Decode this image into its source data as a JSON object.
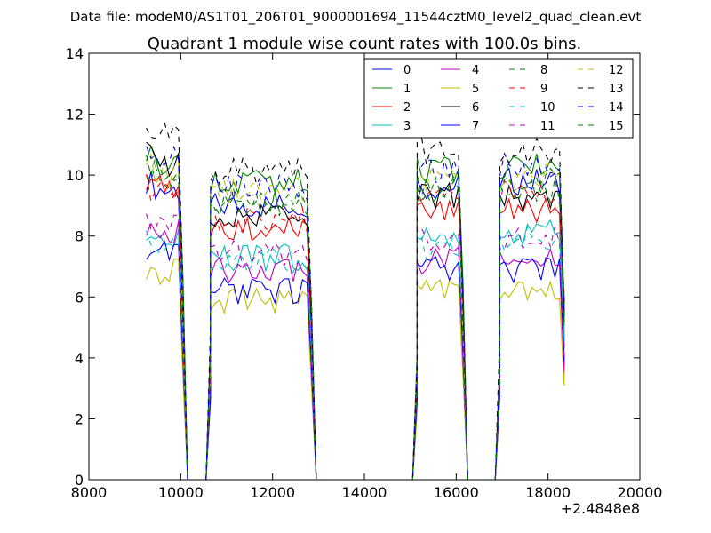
{
  "figure": {
    "suptitle": "Data file: modeM0/AS1T01_206T01_9000001694_11544cztM0_level2_quad_clean.evt"
  },
  "chart_data": {
    "type": "line",
    "title": "Quadrant 1 module wise count rates with 100.0s bins.",
    "xlabel": "",
    "ylabel": "",
    "x_offset_label": "+2.4848e8",
    "xlim": [
      8000,
      20000
    ],
    "ylim": [
      0,
      14
    ],
    "xticks": [
      8000,
      10000,
      12000,
      14000,
      16000,
      18000,
      20000
    ],
    "yticks": [
      0,
      2,
      4,
      6,
      8,
      10,
      12,
      14
    ],
    "grid": false,
    "legend_position": "top-right",
    "legend_columns": 4,
    "bin_seconds": 100,
    "segments": [
      {
        "start": 9250,
        "end": 10050
      },
      {
        "start": 10650,
        "end": 12850
      },
      {
        "start": 15150,
        "end": 16150
      },
      {
        "start": 16950,
        "end": 18350
      }
    ],
    "series": [
      {
        "name": "0",
        "color": "#0000ff",
        "style": "solid",
        "levels": [
          9.5,
          9.0,
          9.6,
          9.8
        ]
      },
      {
        "name": "1",
        "color": "#008000",
        "style": "solid",
        "levels": [
          10.4,
          9.8,
          10.2,
          10.3
        ]
      },
      {
        "name": "2",
        "color": "#ff0000",
        "style": "solid",
        "levels": [
          9.6,
          8.2,
          8.9,
          8.8
        ]
      },
      {
        "name": "3",
        "color": "#00bfbf",
        "style": "solid",
        "levels": [
          7.9,
          7.3,
          7.9,
          8.1
        ]
      },
      {
        "name": "4",
        "color": "#bf00bf",
        "style": "solid",
        "levels": [
          8.1,
          6.9,
          7.2,
          7.3
        ]
      },
      {
        "name": "5",
        "color": "#bfbf00",
        "style": "solid",
        "levels": [
          6.8,
          5.9,
          6.2,
          6.3
        ]
      },
      {
        "name": "6",
        "color": "#000000",
        "style": "solid",
        "levels": [
          10.3,
          8.7,
          9.3,
          9.2
        ]
      },
      {
        "name": "7",
        "color": "#0000ff",
        "style": "solid",
        "levels": [
          7.4,
          6.2,
          6.9,
          6.9
        ]
      },
      {
        "name": "8",
        "color": "#008000",
        "style": "dashed",
        "levels": [
          9.8,
          9.1,
          9.5,
          9.5
        ]
      },
      {
        "name": "9",
        "color": "#ff0000",
        "style": "dashed",
        "levels": [
          9.3,
          8.5,
          9.3,
          9.4
        ]
      },
      {
        "name": "10",
        "color": "#00bfbf",
        "style": "dashed",
        "levels": [
          7.8,
          7.2,
          7.6,
          7.9
        ]
      },
      {
        "name": "11",
        "color": "#bf00bf",
        "style": "dashed",
        "levels": [
          8.3,
          7.4,
          7.8,
          8.0
        ]
      },
      {
        "name": "12",
        "color": "#bfbf00",
        "style": "dashed",
        "levels": [
          10.0,
          9.5,
          9.8,
          9.9
        ]
      },
      {
        "name": "13",
        "color": "#000000",
        "style": "dashed",
        "levels": [
          11.4,
          10.1,
          10.8,
          10.8
        ]
      },
      {
        "name": "14",
        "color": "#0000ff",
        "style": "dashed",
        "levels": [
          10.6,
          9.6,
          10.2,
          10.3
        ]
      },
      {
        "name": "15",
        "color": "#008000",
        "style": "dashed",
        "levels": [
          10.2,
          9.1,
          9.7,
          9.8
        ]
      }
    ]
  }
}
